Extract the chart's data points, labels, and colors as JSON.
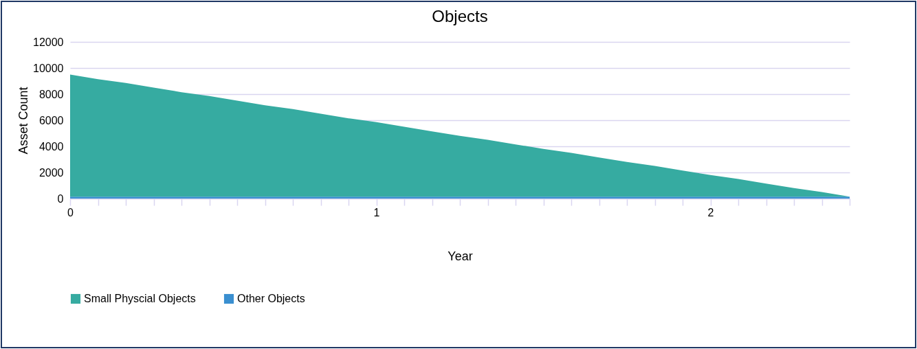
{
  "chart_data": {
    "type": "area",
    "title": "Objects",
    "xlabel": "Year",
    "ylabel": "Asset Count",
    "stacked": true,
    "categories": [
      "0",
      null,
      null,
      null,
      null,
      null,
      null,
      null,
      null,
      null,
      null,
      "1",
      null,
      null,
      null,
      null,
      null,
      null,
      null,
      null,
      null,
      null,
      null,
      "2",
      null,
      null,
      null,
      null,
      null
    ],
    "series": [
      {
        "name": "Other Objects",
        "color": "#3a8fd0",
        "values": [
          150,
          150,
          150,
          150,
          150,
          150,
          150,
          150,
          150,
          150,
          150,
          150,
          150,
          150,
          150,
          150,
          150,
          150,
          150,
          150,
          150,
          150,
          150,
          150,
          150,
          150,
          150,
          150,
          150
        ]
      },
      {
        "name": "Small Physcial Objects",
        "color": "#36aba1",
        "values": [
          9350,
          9000,
          8700,
          8350,
          8000,
          7700,
          7350,
          7000,
          6700,
          6350,
          6000,
          5700,
          5350,
          5000,
          4650,
          4350,
          4000,
          3650,
          3350,
          3000,
          2650,
          2350,
          2000,
          1650,
          1350,
          1000,
          650,
          350,
          0
        ]
      }
    ],
    "ylim": [
      0,
      12000
    ],
    "yticks": [
      0,
      2000,
      4000,
      6000,
      8000,
      10000,
      12000
    ],
    "grid": "y",
    "legend": "bottom"
  }
}
